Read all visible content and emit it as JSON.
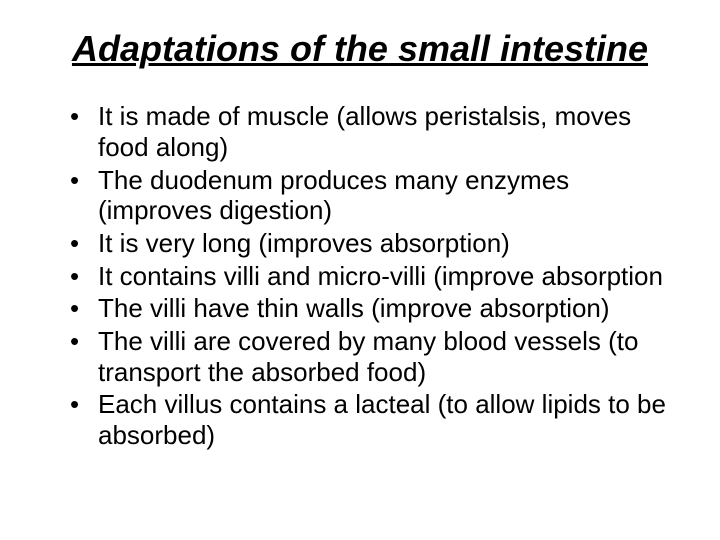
{
  "title": "Adaptations of the small intestine",
  "bullets": [
    "It is made of muscle (allows peristalsis, moves food along)",
    "The duodenum produces many enzymes (improves digestion)",
    "It is very long (improves absorption)",
    "It contains villi and micro-villi (improve absorption",
    "The villi have thin walls (improve absorption)",
    "The villi are covered by many blood vessels (to transport the absorbed food)",
    "Each villus contains a lacteal (to allow lipids to be absorbed)"
  ],
  "colors": {
    "background": "#ffffff",
    "text": "#000000"
  },
  "typography": {
    "title_fontsize": 36,
    "title_weight": "bold",
    "title_style": "italic",
    "title_underline": true,
    "body_fontsize": 26,
    "font_family": "Arial"
  }
}
